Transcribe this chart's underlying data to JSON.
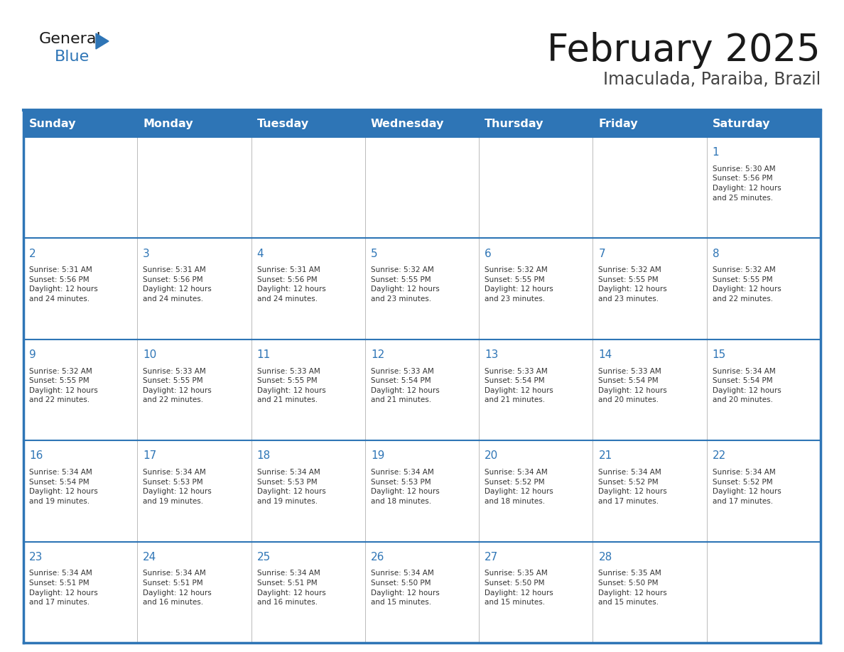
{
  "title": "February 2025",
  "subtitle": "Imaculada, Paraiba, Brazil",
  "days_of_week": [
    "Sunday",
    "Monday",
    "Tuesday",
    "Wednesday",
    "Thursday",
    "Friday",
    "Saturday"
  ],
  "header_bg": "#2E75B6",
  "header_text": "#FFFFFF",
  "cell_bg": "#FFFFFF",
  "cell_text": "#333333",
  "day_num_color": "#2E75B6",
  "border_color": "#2E75B6",
  "grid_color": "#AAAAAA",
  "title_color": "#1A1A1A",
  "subtitle_color": "#444444",
  "logo_general_color": "#1A1A1A",
  "logo_blue_color": "#2E75B6",
  "calendar_data": [
    [
      {
        "day": null,
        "info": null
      },
      {
        "day": null,
        "info": null
      },
      {
        "day": null,
        "info": null
      },
      {
        "day": null,
        "info": null
      },
      {
        "day": null,
        "info": null
      },
      {
        "day": null,
        "info": null
      },
      {
        "day": 1,
        "info": "Sunrise: 5:30 AM\nSunset: 5:56 PM\nDaylight: 12 hours\nand 25 minutes."
      }
    ],
    [
      {
        "day": 2,
        "info": "Sunrise: 5:31 AM\nSunset: 5:56 PM\nDaylight: 12 hours\nand 24 minutes."
      },
      {
        "day": 3,
        "info": "Sunrise: 5:31 AM\nSunset: 5:56 PM\nDaylight: 12 hours\nand 24 minutes."
      },
      {
        "day": 4,
        "info": "Sunrise: 5:31 AM\nSunset: 5:56 PM\nDaylight: 12 hours\nand 24 minutes."
      },
      {
        "day": 5,
        "info": "Sunrise: 5:32 AM\nSunset: 5:55 PM\nDaylight: 12 hours\nand 23 minutes."
      },
      {
        "day": 6,
        "info": "Sunrise: 5:32 AM\nSunset: 5:55 PM\nDaylight: 12 hours\nand 23 minutes."
      },
      {
        "day": 7,
        "info": "Sunrise: 5:32 AM\nSunset: 5:55 PM\nDaylight: 12 hours\nand 23 minutes."
      },
      {
        "day": 8,
        "info": "Sunrise: 5:32 AM\nSunset: 5:55 PM\nDaylight: 12 hours\nand 22 minutes."
      }
    ],
    [
      {
        "day": 9,
        "info": "Sunrise: 5:32 AM\nSunset: 5:55 PM\nDaylight: 12 hours\nand 22 minutes."
      },
      {
        "day": 10,
        "info": "Sunrise: 5:33 AM\nSunset: 5:55 PM\nDaylight: 12 hours\nand 22 minutes."
      },
      {
        "day": 11,
        "info": "Sunrise: 5:33 AM\nSunset: 5:55 PM\nDaylight: 12 hours\nand 21 minutes."
      },
      {
        "day": 12,
        "info": "Sunrise: 5:33 AM\nSunset: 5:54 PM\nDaylight: 12 hours\nand 21 minutes."
      },
      {
        "day": 13,
        "info": "Sunrise: 5:33 AM\nSunset: 5:54 PM\nDaylight: 12 hours\nand 21 minutes."
      },
      {
        "day": 14,
        "info": "Sunrise: 5:33 AM\nSunset: 5:54 PM\nDaylight: 12 hours\nand 20 minutes."
      },
      {
        "day": 15,
        "info": "Sunrise: 5:34 AM\nSunset: 5:54 PM\nDaylight: 12 hours\nand 20 minutes."
      }
    ],
    [
      {
        "day": 16,
        "info": "Sunrise: 5:34 AM\nSunset: 5:54 PM\nDaylight: 12 hours\nand 19 minutes."
      },
      {
        "day": 17,
        "info": "Sunrise: 5:34 AM\nSunset: 5:53 PM\nDaylight: 12 hours\nand 19 minutes."
      },
      {
        "day": 18,
        "info": "Sunrise: 5:34 AM\nSunset: 5:53 PM\nDaylight: 12 hours\nand 19 minutes."
      },
      {
        "day": 19,
        "info": "Sunrise: 5:34 AM\nSunset: 5:53 PM\nDaylight: 12 hours\nand 18 minutes."
      },
      {
        "day": 20,
        "info": "Sunrise: 5:34 AM\nSunset: 5:52 PM\nDaylight: 12 hours\nand 18 minutes."
      },
      {
        "day": 21,
        "info": "Sunrise: 5:34 AM\nSunset: 5:52 PM\nDaylight: 12 hours\nand 17 minutes."
      },
      {
        "day": 22,
        "info": "Sunrise: 5:34 AM\nSunset: 5:52 PM\nDaylight: 12 hours\nand 17 minutes."
      }
    ],
    [
      {
        "day": 23,
        "info": "Sunrise: 5:34 AM\nSunset: 5:51 PM\nDaylight: 12 hours\nand 17 minutes."
      },
      {
        "day": 24,
        "info": "Sunrise: 5:34 AM\nSunset: 5:51 PM\nDaylight: 12 hours\nand 16 minutes."
      },
      {
        "day": 25,
        "info": "Sunrise: 5:34 AM\nSunset: 5:51 PM\nDaylight: 12 hours\nand 16 minutes."
      },
      {
        "day": 26,
        "info": "Sunrise: 5:34 AM\nSunset: 5:50 PM\nDaylight: 12 hours\nand 15 minutes."
      },
      {
        "day": 27,
        "info": "Sunrise: 5:35 AM\nSunset: 5:50 PM\nDaylight: 12 hours\nand 15 minutes."
      },
      {
        "day": 28,
        "info": "Sunrise: 5:35 AM\nSunset: 5:50 PM\nDaylight: 12 hours\nand 15 minutes."
      },
      {
        "day": null,
        "info": null
      }
    ]
  ]
}
